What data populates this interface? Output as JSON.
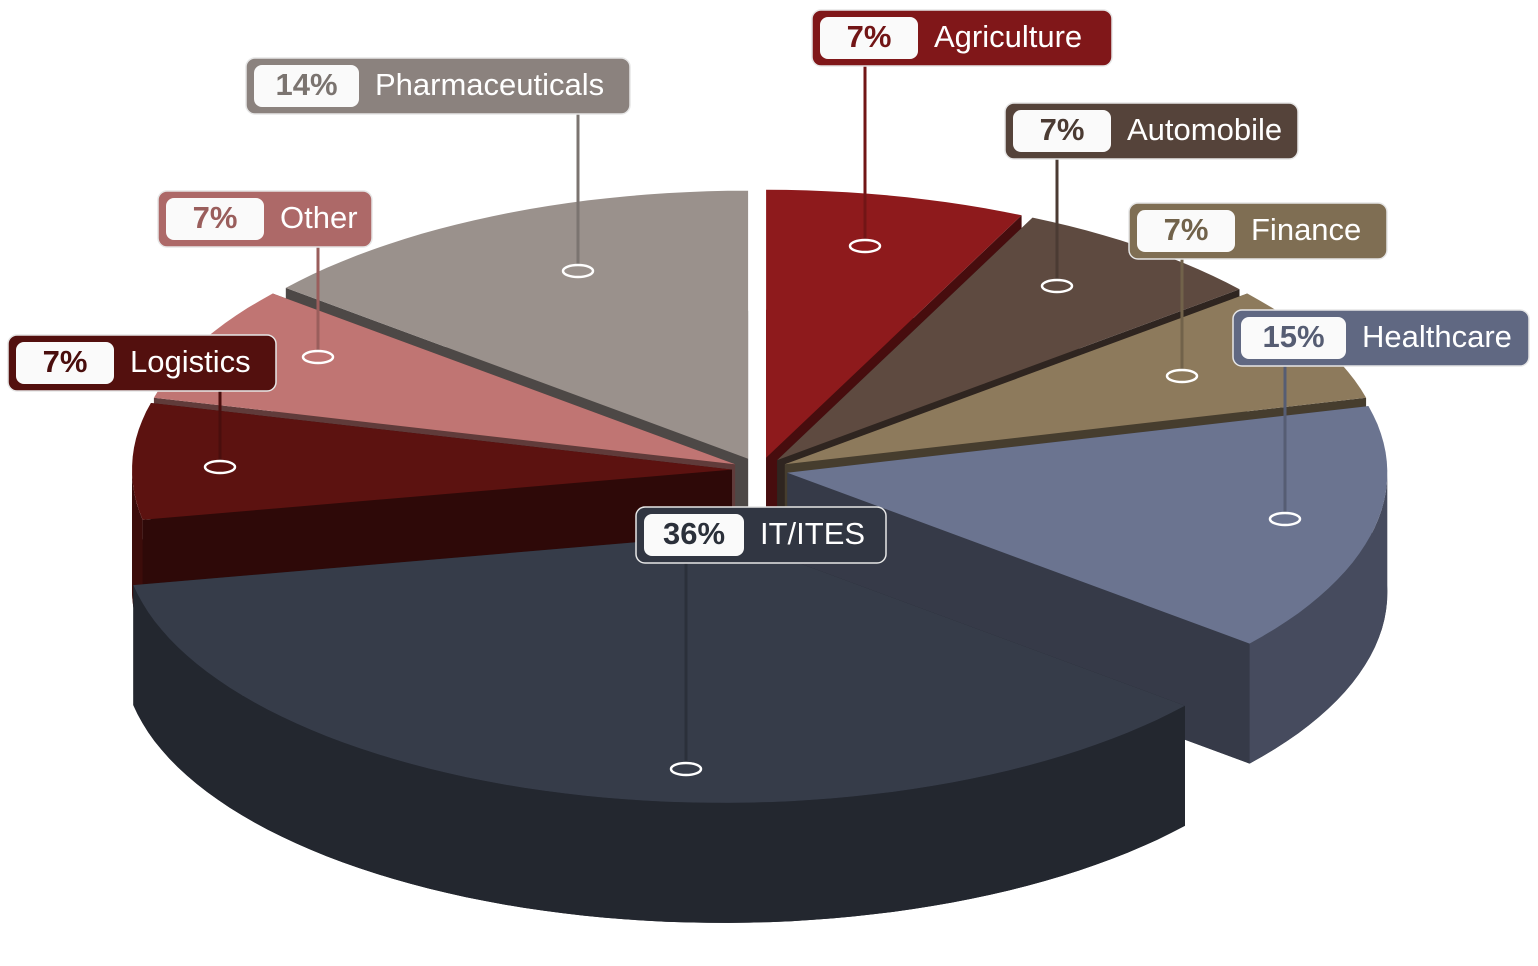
{
  "chart_data": {
    "type": "pie",
    "categories": [
      "Agriculture",
      "Automobile",
      "Finance",
      "Healthcare",
      "IT/ITES",
      "Logistics",
      "Other",
      "Pharmaceuticals"
    ],
    "values": [
      7,
      7,
      7,
      15,
      36,
      7,
      7,
      14
    ],
    "value_labels": [
      "7%",
      "7%",
      "7%",
      "15%",
      "36%",
      "7%",
      "7%",
      "14%"
    ],
    "colors": [
      "#8e1a1c",
      "#5e4a40",
      "#8d7a5c",
      "#6b7490",
      "#363c49",
      "#5c1210",
      "#c07573",
      "#9a918c"
    ]
  }
}
